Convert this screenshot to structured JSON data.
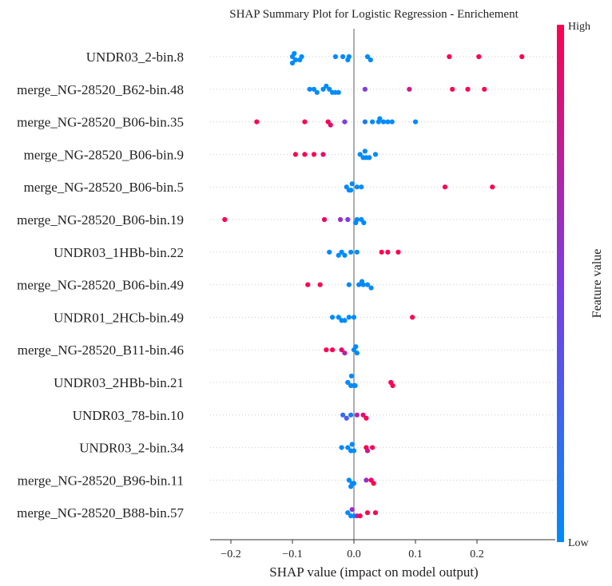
{
  "chart_data": {
    "type": "scatter",
    "title": "SHAP Summary Plot for Logistic Regression - Enrichement",
    "xlabel": "SHAP value (impact on model output)",
    "xlim": [
      -0.24,
      0.29
    ],
    "x_ticks": [
      -0.2,
      -0.1,
      0.0,
      0.1,
      0.2
    ],
    "x_tick_labels": [
      "−0.2",
      "−0.1",
      "0.0",
      "0.1",
      "0.2"
    ],
    "colorbar": {
      "label": "Feature value",
      "high_label": "High",
      "low_label": "Low",
      "low_color": "#008bfb",
      "high_color": "#ff0052"
    },
    "features": [
      {
        "name": "UNDR03_2-bin.8",
        "points": [
          [
            -0.1,
            0.0
          ],
          [
            -0.095,
            0.0
          ],
          [
            -0.085,
            0.0
          ],
          [
            -0.097,
            0.0
          ],
          [
            -0.008,
            0.0
          ],
          [
            -0.03,
            0.0
          ],
          [
            -0.018,
            0.0
          ],
          [
            0.022,
            0.0
          ],
          [
            0.027,
            0.0
          ],
          [
            -0.1,
            0.0
          ],
          [
            -0.088,
            0.0
          ],
          [
            -0.01,
            0.0
          ],
          [
            0.155,
            1.0
          ],
          [
            0.203,
            1.0
          ],
          [
            0.273,
            1.0
          ]
        ]
      },
      {
        "name": "merge_NG-28520_B62-bin.48",
        "points": [
          [
            -0.072,
            0.0
          ],
          [
            -0.065,
            0.0
          ],
          [
            -0.06,
            0.0
          ],
          [
            -0.05,
            0.0
          ],
          [
            -0.04,
            0.0
          ],
          [
            -0.035,
            0.0
          ],
          [
            -0.03,
            0.0
          ],
          [
            -0.025,
            0.0
          ],
          [
            -0.045,
            0.0
          ],
          [
            0.018,
            0.5
          ],
          [
            0.09,
            0.8
          ],
          [
            0.16,
            1.0
          ],
          [
            0.185,
            1.0
          ],
          [
            0.212,
            1.0
          ]
        ]
      },
      {
        "name": "merge_NG-28520_B06-bin.35",
        "points": [
          [
            -0.158,
            1.0
          ],
          [
            -0.08,
            1.0
          ],
          [
            -0.042,
            1.0
          ],
          [
            -0.038,
            0.9
          ],
          [
            -0.015,
            0.5
          ],
          [
            0.018,
            0.1
          ],
          [
            0.03,
            0.0
          ],
          [
            0.04,
            0.0
          ],
          [
            0.048,
            0.0
          ],
          [
            0.055,
            0.0
          ],
          [
            0.062,
            0.0
          ],
          [
            0.1,
            0.0
          ],
          [
            0.042,
            0.0
          ]
        ]
      },
      {
        "name": "merge_NG-28520_B06-bin.9",
        "points": [
          [
            -0.095,
            1.0
          ],
          [
            -0.08,
            1.0
          ],
          [
            -0.065,
            1.0
          ],
          [
            -0.05,
            0.9
          ],
          [
            0.01,
            0.0
          ],
          [
            0.015,
            0.0
          ],
          [
            0.02,
            0.0
          ],
          [
            0.025,
            0.0
          ],
          [
            0.035,
            0.0
          ],
          [
            0.018,
            0.0
          ]
        ]
      },
      {
        "name": "merge_NG-28520_B06-bin.5",
        "points": [
          [
            -0.012,
            0.0
          ],
          [
            -0.008,
            0.0
          ],
          [
            -0.005,
            0.0
          ],
          [
            0.005,
            0.0
          ],
          [
            0.012,
            0.0
          ],
          [
            -0.003,
            0.0
          ],
          [
            0.148,
            1.0
          ],
          [
            0.225,
            1.0
          ]
        ]
      },
      {
        "name": "merge_NG-28520_B06-bin.19",
        "points": [
          [
            -0.21,
            1.0
          ],
          [
            -0.048,
            0.95
          ],
          [
            -0.022,
            0.6
          ],
          [
            -0.01,
            0.5
          ],
          [
            0.005,
            0.0
          ],
          [
            0.012,
            0.0
          ],
          [
            0.016,
            0.0
          ],
          [
            0.003,
            0.0
          ]
        ]
      },
      {
        "name": "UNDR03_1HBb-bin.22",
        "points": [
          [
            -0.04,
            0.0
          ],
          [
            -0.02,
            0.0
          ],
          [
            -0.015,
            0.0
          ],
          [
            -0.005,
            0.0
          ],
          [
            0.005,
            0.0
          ],
          [
            -0.025,
            0.0
          ],
          [
            0.045,
            1.0
          ],
          [
            0.055,
            1.0
          ],
          [
            0.072,
            1.0
          ]
        ]
      },
      {
        "name": "merge_NG-28520_B06-bin.49",
        "points": [
          [
            -0.075,
            1.0
          ],
          [
            -0.055,
            1.0
          ],
          [
            -0.008,
            0.0
          ],
          [
            0.008,
            0.0
          ],
          [
            0.015,
            0.0
          ],
          [
            0.022,
            0.0
          ],
          [
            0.028,
            0.0
          ],
          [
            0.013,
            0.0
          ]
        ]
      },
      {
        "name": "UNDR01_2HCb-bin.49",
        "points": [
          [
            -0.035,
            0.0
          ],
          [
            -0.025,
            0.0
          ],
          [
            -0.02,
            0.0
          ],
          [
            -0.008,
            0.0
          ],
          [
            0.0,
            0.0
          ],
          [
            -0.015,
            0.0
          ],
          [
            0.095,
            1.0
          ]
        ]
      },
      {
        "name": "merge_NG-28520_B11-bin.46",
        "points": [
          [
            -0.045,
            1.0
          ],
          [
            -0.035,
            1.0
          ],
          [
            -0.02,
            0.9
          ],
          [
            -0.015,
            0.7
          ],
          [
            0.0,
            0.0
          ],
          [
            0.005,
            0.0
          ],
          [
            0.003,
            0.0
          ]
        ]
      },
      {
        "name": "UNDR03_2HBb-bin.21",
        "points": [
          [
            -0.01,
            0.0
          ],
          [
            -0.005,
            0.0
          ],
          [
            0.0,
            0.0
          ],
          [
            0.002,
            0.0
          ],
          [
            -0.004,
            0.0
          ],
          [
            0.06,
            1.0
          ],
          [
            0.063,
            1.0
          ]
        ]
      },
      {
        "name": "UNDR03_78-bin.10",
        "points": [
          [
            -0.018,
            0.2
          ],
          [
            -0.012,
            0.3
          ],
          [
            -0.005,
            0.1
          ],
          [
            0.005,
            0.7
          ],
          [
            0.015,
            0.9
          ],
          [
            0.02,
            1.0
          ]
        ]
      },
      {
        "name": "UNDR03_2-bin.34",
        "points": [
          [
            -0.02,
            0.0
          ],
          [
            -0.01,
            0.0
          ],
          [
            -0.005,
            0.0
          ],
          [
            0.0,
            0.0
          ],
          [
            -0.003,
            0.0
          ],
          [
            0.02,
            1.0
          ],
          [
            0.03,
            1.0
          ],
          [
            0.022,
            0.8
          ]
        ]
      },
      {
        "name": "merge_NG-28520_B96-bin.11",
        "points": [
          [
            -0.008,
            0.0
          ],
          [
            -0.003,
            0.0
          ],
          [
            0.0,
            0.0
          ],
          [
            -0.005,
            0.0
          ],
          [
            0.02,
            0.6
          ],
          [
            0.028,
            1.0
          ],
          [
            0.032,
            1.0
          ]
        ]
      },
      {
        "name": "merge_NG-28520_B88-bin.57",
        "points": [
          [
            -0.01,
            0.0
          ],
          [
            -0.005,
            0.0
          ],
          [
            0.0,
            0.0
          ],
          [
            0.005,
            0.7
          ],
          [
            0.01,
            1.0
          ],
          [
            0.022,
            1.0
          ],
          [
            0.035,
            1.0
          ],
          [
            -0.003,
            0.6
          ]
        ]
      }
    ]
  }
}
